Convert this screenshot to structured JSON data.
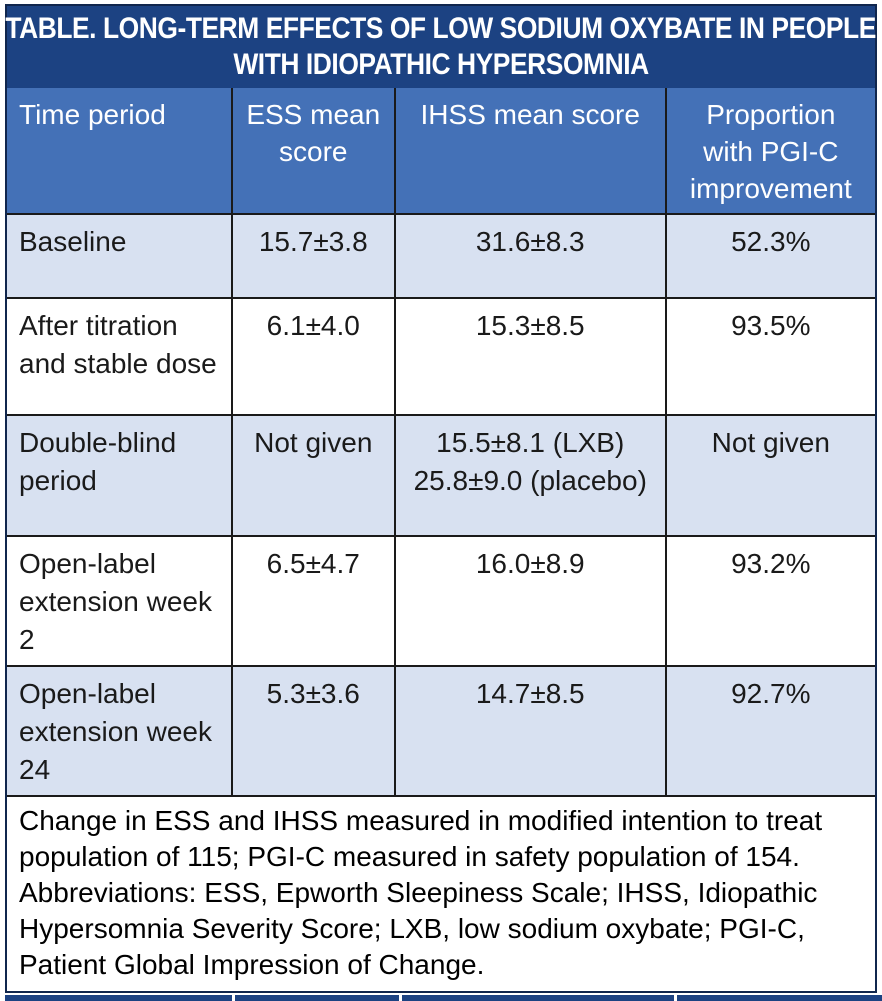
{
  "table": {
    "title_line1": "TABLE. LONG-TERM EFFECTS OF LOW SODIUM OXYBATE IN PEOPLE",
    "title_line2": "WITH IDIOPATHIC HYPERSOMNIA",
    "columns": [
      "Time period",
      "ESS mean\nscore",
      "IHSS mean score",
      "Proportion\nwith PGI-C\nimprovement"
    ],
    "rows": [
      {
        "time_period": "Baseline",
        "ess": "15.7±3.8",
        "ihss": "31.6±8.3",
        "pgic": "52.3%"
      },
      {
        "time_period": "After titration and stable dose",
        "ess": "6.1±4.0",
        "ihss": "15.3±8.5",
        "pgic": "93.5%"
      },
      {
        "time_period": "Double-blind period",
        "ess": "Not given",
        "ihss": "15.5±8.1 (LXB)\n25.8±9.0 (placebo)",
        "pgic": "Not given"
      },
      {
        "time_period": "Open-label extension week 2",
        "ess": "6.5±4.7",
        "ihss": "16.0±8.9",
        "pgic": "93.2%"
      },
      {
        "time_period": "Open-label extension week 24",
        "ess": "5.3±3.6",
        "ihss": "14.7±8.5",
        "pgic": "92.7%"
      }
    ],
    "footnote": "Change in ESS and IHSS measured in modified intention to treat population of 115; PGI-C measured in safety population of 154. Abbreviations: ESS, Epworth Sleepiness Scale; IHSS, Idiopathic Hypersomnia Severity Score; LXB, low sodium oxybate; PGI-C, Patient Global Impression of Change.",
    "colors": {
      "title_bar": "#1c4282",
      "header_row": "#4471b7",
      "light_row": "#d8e1f1",
      "white_row": "#ffffff",
      "border": "#1a1a1a",
      "title_text": "#ffffff",
      "body_text": "#1a1a1a"
    }
  },
  "chart_data": {
    "type": "table",
    "title": "TABLE. LONG-TERM EFFECTS OF LOW SODIUM OXYBATE IN PEOPLE WITH IDIOPATHIC HYPERSOMNIA",
    "columns": [
      "Time period",
      "ESS mean score",
      "IHSS mean score",
      "Proportion with PGI-C improvement"
    ],
    "rows": [
      [
        "Baseline",
        "15.7±3.8",
        "31.6±8.3",
        "52.3%"
      ],
      [
        "After titration and stable dose",
        "6.1±4.0",
        "15.3±8.5",
        "93.5%"
      ],
      [
        "Double-blind period",
        "Not given",
        "15.5±8.1 (LXB); 25.8±9.0 (placebo)",
        "Not given"
      ],
      [
        "Open-label extension week 2",
        "6.5±4.7",
        "16.0±8.9",
        "93.2%"
      ],
      [
        "Open-label extension week 24",
        "5.3±3.6",
        "14.7±8.5",
        "92.7%"
      ]
    ],
    "footnote": "Change in ESS and IHSS measured in modified intention to treat population of 115; PGI-C measured in safety population of 154. Abbreviations: ESS, Epworth Sleepiness Scale; IHSS, Idiopathic Hypersomnia Severity Score; LXB, low sodium oxybate; PGI-C, Patient Global Impression of Change."
  }
}
